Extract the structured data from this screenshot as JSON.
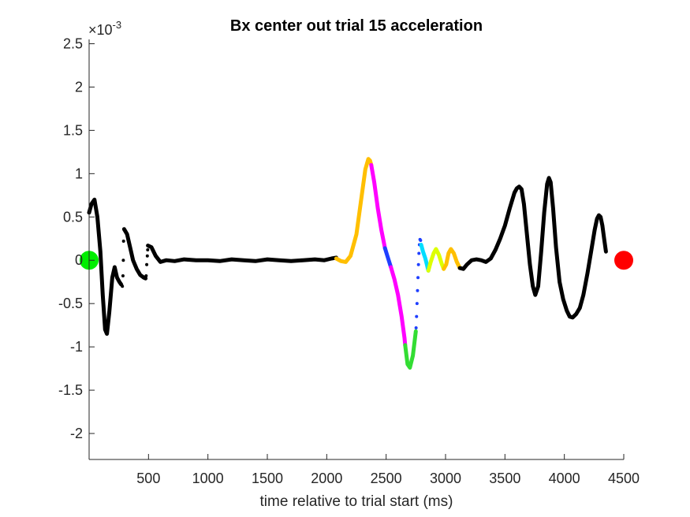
{
  "chart_data": {
    "type": "line",
    "title": "Bx  center out trial 15 acceleration",
    "xlabel": "time relative to trial start (ms)",
    "ylabel": "",
    "exponent_label": "×10",
    "exponent_power": "-3",
    "xlim": [
      0,
      4500
    ],
    "ylim": [
      -2.3,
      2.55
    ],
    "x_ticks": [
      500,
      1000,
      1500,
      2000,
      2500,
      3000,
      3500,
      4000,
      4500
    ],
    "y_ticks": [
      2.5,
      2,
      1.5,
      1,
      0.5,
      0,
      -0.5,
      -1,
      -1.5,
      -2
    ],
    "y_tick_labels": [
      "2.5",
      "2",
      "1.5",
      "1",
      "0.5",
      "0",
      "-0.5",
      "-1",
      "-1.5",
      "-2"
    ],
    "grid": false,
    "colors": {
      "black": "#000000",
      "orange": "#ffbf00",
      "magenta": "#ff00ff",
      "blue": "#1f3fff",
      "green": "#33dd33",
      "cyan": "#00ddff",
      "yellow": "#ddff00",
      "start_marker": "#00ee00",
      "end_marker": "#ff0000"
    },
    "series": [
      {
        "color_key": "black",
        "style": "line",
        "points": [
          [
            0,
            0.55
          ],
          [
            20,
            0.65
          ],
          [
            45,
            0.7
          ],
          [
            70,
            0.5
          ],
          [
            95,
            0.1
          ],
          [
            115,
            -0.4
          ],
          [
            135,
            -0.8
          ],
          [
            150,
            -0.85
          ],
          [
            170,
            -0.6
          ],
          [
            195,
            -0.2
          ],
          [
            215,
            -0.08
          ],
          [
            235,
            -0.2
          ],
          [
            255,
            -0.25
          ],
          [
            270,
            -0.28
          ]
        ]
      },
      {
        "color_key": "black",
        "style": "dots",
        "points": [
          [
            280,
            -0.3
          ],
          [
            285,
            -0.18
          ],
          [
            288,
            0.0
          ],
          [
            290,
            0.22
          ],
          [
            295,
            0.35
          ]
        ]
      },
      {
        "color_key": "black",
        "style": "line",
        "points": [
          [
            295,
            0.36
          ],
          [
            320,
            0.3
          ],
          [
            345,
            0.15
          ],
          [
            370,
            0.0
          ],
          [
            400,
            -0.1
          ],
          [
            430,
            -0.17
          ],
          [
            460,
            -0.2
          ],
          [
            475,
            -0.21
          ]
        ]
      },
      {
        "color_key": "black",
        "style": "dots",
        "points": [
          [
            480,
            -0.18
          ],
          [
            485,
            -0.05
          ],
          [
            490,
            0.05
          ],
          [
            493,
            0.12
          ]
        ]
      },
      {
        "color_key": "black",
        "style": "line",
        "points": [
          [
            495,
            0.17
          ],
          [
            525,
            0.15
          ],
          [
            560,
            0.05
          ],
          [
            600,
            -0.02
          ],
          [
            650,
            0.0
          ],
          [
            720,
            -0.01
          ],
          [
            800,
            0.01
          ],
          [
            900,
            0.0
          ],
          [
            1000,
            0.0
          ],
          [
            1100,
            -0.01
          ],
          [
            1200,
            0.01
          ],
          [
            1300,
            0.0
          ],
          [
            1400,
            -0.01
          ],
          [
            1500,
            0.01
          ],
          [
            1600,
            0.0
          ],
          [
            1700,
            -0.01
          ],
          [
            1800,
            0.0
          ],
          [
            1900,
            0.01
          ],
          [
            1980,
            0.0
          ],
          [
            2040,
            0.02
          ],
          [
            2080,
            0.03
          ]
        ]
      },
      {
        "color_key": "orange",
        "style": "line",
        "points": [
          [
            2080,
            0.02
          ],
          [
            2120,
            -0.01
          ],
          [
            2160,
            -0.02
          ],
          [
            2200,
            0.05
          ],
          [
            2250,
            0.3
          ],
          [
            2290,
            0.7
          ],
          [
            2325,
            1.05
          ],
          [
            2350,
            1.17
          ],
          [
            2365,
            1.15
          ],
          [
            2375,
            1.1
          ]
        ]
      },
      {
        "color_key": "magenta",
        "style": "line",
        "points": [
          [
            2375,
            1.1
          ],
          [
            2400,
            0.9
          ],
          [
            2430,
            0.6
          ],
          [
            2460,
            0.35
          ],
          [
            2490,
            0.14
          ]
        ]
      },
      {
        "color_key": "blue",
        "style": "line",
        "points": [
          [
            2490,
            0.14
          ],
          [
            2510,
            0.05
          ],
          [
            2540,
            -0.08
          ]
        ]
      },
      {
        "color_key": "magenta",
        "style": "line",
        "points": [
          [
            2540,
            -0.08
          ],
          [
            2570,
            -0.22
          ],
          [
            2600,
            -0.4
          ],
          [
            2630,
            -0.65
          ],
          [
            2655,
            -0.9
          ],
          [
            2660,
            -0.98
          ]
        ]
      },
      {
        "color_key": "green",
        "style": "line",
        "points": [
          [
            2660,
            -0.98
          ],
          [
            2680,
            -1.2
          ],
          [
            2700,
            -1.24
          ],
          [
            2725,
            -1.1
          ],
          [
            2750,
            -0.82
          ]
        ]
      },
      {
        "color_key": "blue",
        "style": "dots",
        "points": [
          [
            2752,
            -0.78
          ],
          [
            2756,
            -0.65
          ],
          [
            2760,
            -0.5
          ],
          [
            2764,
            -0.35
          ],
          [
            2768,
            -0.2
          ],
          [
            2772,
            -0.05
          ],
          [
            2776,
            0.08
          ],
          [
            2780,
            0.18
          ],
          [
            2785,
            0.24
          ],
          [
            2790,
            0.23
          ],
          [
            2795,
            0.18
          ]
        ]
      },
      {
        "color_key": "cyan",
        "style": "line",
        "points": [
          [
            2795,
            0.18
          ],
          [
            2810,
            0.1
          ],
          [
            2830,
            0.02
          ],
          [
            2845,
            -0.06
          ],
          [
            2855,
            -0.12
          ]
        ]
      },
      {
        "color_key": "yellow",
        "style": "line",
        "points": [
          [
            2855,
            -0.12
          ],
          [
            2875,
            -0.02
          ],
          [
            2900,
            0.08
          ],
          [
            2920,
            0.13
          ],
          [
            2945,
            0.06
          ],
          [
            2970,
            -0.05
          ],
          [
            2985,
            -0.1
          ]
        ]
      },
      {
        "color_key": "orange",
        "style": "line",
        "points": [
          [
            2985,
            -0.1
          ],
          [
            3005,
            -0.05
          ],
          [
            3025,
            0.08
          ],
          [
            3045,
            0.13
          ],
          [
            3070,
            0.08
          ],
          [
            3095,
            -0.02
          ],
          [
            3120,
            -0.09
          ]
        ]
      },
      {
        "color_key": "black",
        "style": "line",
        "points": [
          [
            3120,
            -0.09
          ],
          [
            3150,
            -0.1
          ],
          [
            3180,
            -0.05
          ],
          [
            3220,
            0.0
          ],
          [
            3260,
            0.01
          ],
          [
            3300,
            0.0
          ],
          [
            3340,
            -0.02
          ],
          [
            3380,
            0.02
          ],
          [
            3420,
            0.12
          ],
          [
            3460,
            0.25
          ],
          [
            3500,
            0.4
          ],
          [
            3540,
            0.6
          ],
          [
            3580,
            0.78
          ],
          [
            3600,
            0.83
          ],
          [
            3620,
            0.85
          ],
          [
            3640,
            0.82
          ],
          [
            3660,
            0.65
          ],
          [
            3685,
            0.3
          ],
          [
            3710,
            -0.05
          ],
          [
            3735,
            -0.3
          ],
          [
            3755,
            -0.4
          ],
          [
            3780,
            -0.3
          ],
          [
            3805,
            0.1
          ],
          [
            3830,
            0.55
          ],
          [
            3855,
            0.88
          ],
          [
            3870,
            0.95
          ],
          [
            3885,
            0.9
          ],
          [
            3905,
            0.6
          ],
          [
            3930,
            0.15
          ],
          [
            3960,
            -0.25
          ],
          [
            3990,
            -0.45
          ],
          [
            4020,
            -0.58
          ],
          [
            4045,
            -0.65
          ],
          [
            4070,
            -0.66
          ],
          [
            4100,
            -0.62
          ],
          [
            4130,
            -0.55
          ],
          [
            4160,
            -0.4
          ],
          [
            4195,
            -0.15
          ],
          [
            4225,
            0.1
          ],
          [
            4255,
            0.35
          ],
          [
            4275,
            0.48
          ],
          [
            4290,
            0.52
          ],
          [
            4305,
            0.5
          ],
          [
            4320,
            0.4
          ],
          [
            4335,
            0.25
          ],
          [
            4350,
            0.1
          ]
        ]
      }
    ],
    "markers": [
      {
        "x": 0,
        "y": 0,
        "color_key": "start_marker"
      },
      {
        "x": 4500,
        "y": 0,
        "color_key": "end_marker"
      }
    ]
  }
}
